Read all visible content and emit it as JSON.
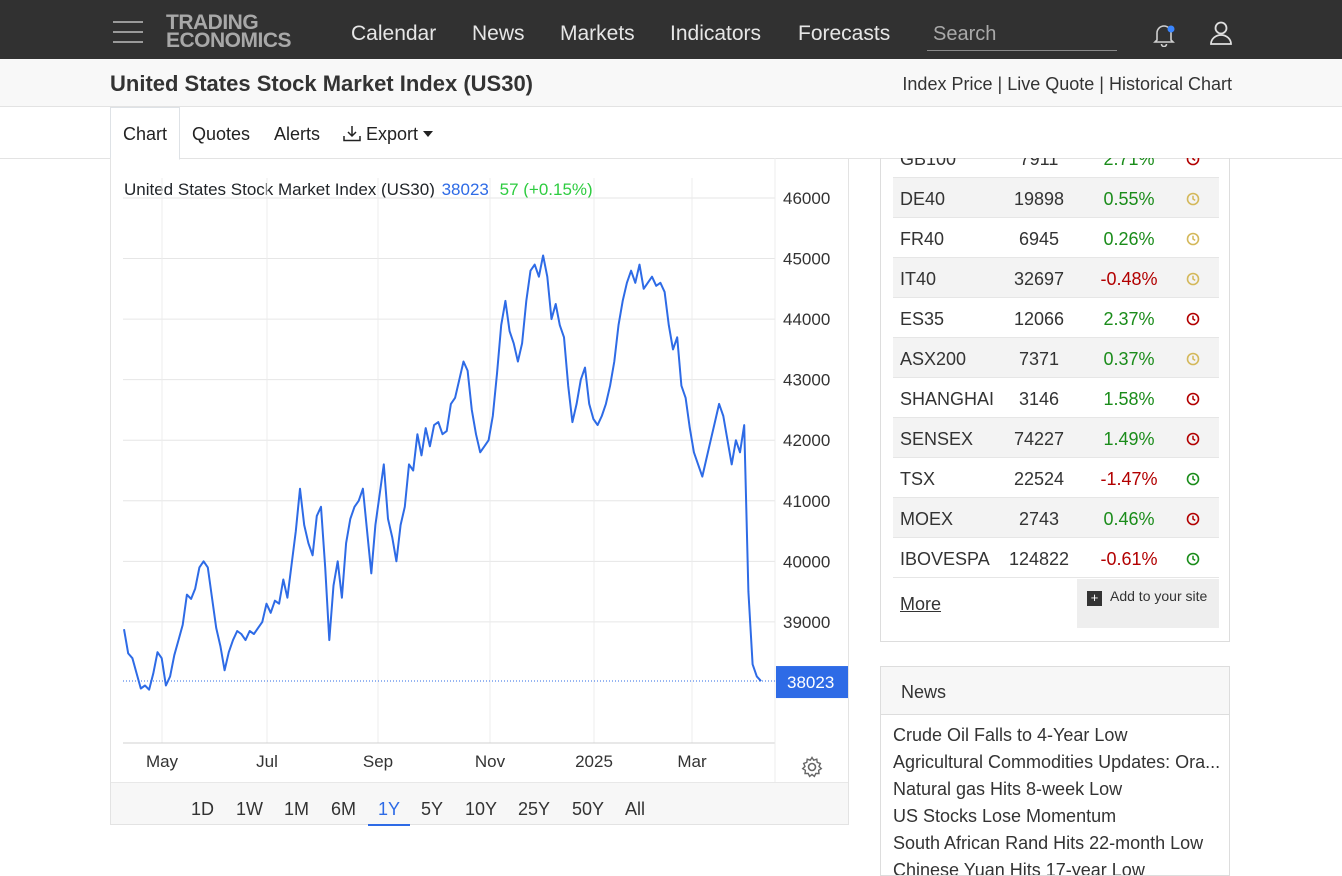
{
  "nav": {
    "logo_line1": "TRADING",
    "logo_line2": "ECONOMICS",
    "links": [
      "Calendar",
      "News",
      "Markets",
      "Indicators",
      "Forecasts"
    ],
    "search_placeholder": "Search",
    "icons": {
      "menu": "hamburger-icon",
      "bell": "bell-icon",
      "user": "user-icon"
    },
    "colors": {
      "bar": "#313131",
      "notify_dot": "#3a86ff"
    }
  },
  "header": {
    "title": "United States Stock Market Index (US30)",
    "links": [
      "Index Price",
      "Live Quote",
      "Historical Chart"
    ],
    "separator": "|"
  },
  "tabs": {
    "chart": "Chart",
    "quotes": "Quotes",
    "alerts": "Alerts",
    "export": "Export",
    "export_icon": "download-icon",
    "active": "Chart"
  },
  "chart_head": {
    "name": "United States Stock Market Index (US30)",
    "price": "38023",
    "change": "57 (+0.15%)"
  },
  "chart_data": {
    "type": "line",
    "y_ticks": [
      "46000",
      "45000",
      "44000",
      "43000",
      "42000",
      "41000",
      "40000",
      "39000"
    ],
    "x_ticks": [
      "May",
      "Jul",
      "Sep",
      "Nov",
      "2025",
      "Mar"
    ],
    "last_value_label": "38023",
    "ylim": [
      37000,
      46000
    ],
    "grid": true,
    "line_color": "#2e6be6",
    "series": [
      {
        "values": [
          38880,
          38480,
          38400,
          38150,
          37900,
          37950,
          37880,
          38150,
          38500,
          38400,
          37950,
          38100,
          38450,
          38700,
          38950,
          39450,
          39380,
          39550,
          39900,
          40000,
          39900,
          39400,
          38900,
          38600,
          38200,
          38500,
          38700,
          38850,
          38800,
          38700,
          38850,
          38800,
          38900,
          39000,
          39300,
          39150,
          39350,
          39300,
          39700,
          39400,
          39950,
          40500,
          41200,
          40600,
          40300,
          40100,
          40750,
          40900,
          39900,
          38700,
          39600,
          40000,
          39400,
          40300,
          40700,
          40900,
          41000,
          41200,
          40500,
          39800,
          40600,
          41100,
          41600,
          40700,
          40400,
          40000,
          40600,
          40900,
          41600,
          41500,
          42100,
          41750,
          42200,
          41900,
          42250,
          42300,
          42100,
          42150,
          42600,
          42700,
          43000,
          43300,
          43150,
          42500,
          42100,
          41800,
          41900,
          42000,
          42400,
          43100,
          43900,
          44300,
          43800,
          43600,
          43300,
          43600,
          44300,
          44800,
          44900,
          44700,
          45050,
          44700,
          44000,
          44250,
          43900,
          43700,
          42900,
          42300,
          42600,
          43000,
          43200,
          42600,
          42350,
          42250,
          42400,
          42600,
          42900,
          43300,
          43900,
          44300,
          44600,
          44800,
          44600,
          44900,
          44500,
          44600,
          44700,
          44550,
          44600,
          44450,
          43900,
          43500,
          43700,
          42900,
          42700,
          42200,
          41800,
          41600,
          41400,
          41700,
          42000,
          42300,
          42600,
          42400,
          42000,
          41600,
          42000,
          41800,
          42250,
          39500,
          38300,
          38100,
          38023
        ]
      }
    ]
  },
  "range_buttons": [
    "1D",
    "1W",
    "1M",
    "6M",
    "1Y",
    "5Y",
    "10Y",
    "25Y",
    "50Y",
    "All"
  ],
  "active_range": "1Y",
  "markets": {
    "rows": [
      {
        "name": "GB100",
        "value": "7911",
        "change": "2.71%",
        "dir": "pos",
        "clock": "#b20000"
      },
      {
        "name": "DE40",
        "value": "19898",
        "change": "0.55%",
        "dir": "pos",
        "clock": "#d4b85a"
      },
      {
        "name": "FR40",
        "value": "6945",
        "change": "0.26%",
        "dir": "pos",
        "clock": "#d4b85a"
      },
      {
        "name": "IT40",
        "value": "32697",
        "change": "-0.48%",
        "dir": "neg",
        "clock": "#d4b85a"
      },
      {
        "name": "ES35",
        "value": "12066",
        "change": "2.37%",
        "dir": "pos",
        "clock": "#b20000"
      },
      {
        "name": "ASX200",
        "value": "7371",
        "change": "0.37%",
        "dir": "pos",
        "clock": "#d4b85a"
      },
      {
        "name": "SHANGHAI",
        "value": "3146",
        "change": "1.58%",
        "dir": "pos",
        "clock": "#b20000"
      },
      {
        "name": "SENSEX",
        "value": "74227",
        "change": "1.49%",
        "dir": "pos",
        "clock": "#b20000"
      },
      {
        "name": "TSX",
        "value": "22524",
        "change": "-1.47%",
        "dir": "neg",
        "clock": "#1a8c1a"
      },
      {
        "name": "MOEX",
        "value": "2743",
        "change": "0.46%",
        "dir": "pos",
        "clock": "#b20000"
      },
      {
        "name": "IBOVESPA",
        "value": "124822",
        "change": "-0.61%",
        "dir": "neg",
        "clock": "#1a8c1a"
      }
    ],
    "more_label": "More",
    "add_label": "Add to your site"
  },
  "news": {
    "title": "News",
    "items": [
      "Crude Oil Falls to 4-Year Low",
      "Agricultural Commodities Updates: Ora...",
      "Natural gas Hits 8-week Low",
      "US Stocks Lose Momentum",
      "South African Rand Hits 22-month Low",
      "Chinese Yuan Hits 17-year Low"
    ]
  }
}
